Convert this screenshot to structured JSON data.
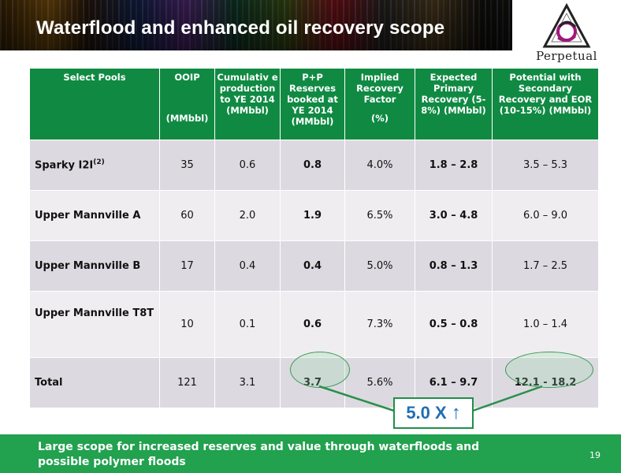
{
  "slide": {
    "title": "Waterflood and enhanced oil recovery scope",
    "logo_text": "Perpetual",
    "page_number": "19",
    "footer_text": "Large scope for increased reserves and value through waterfloods and possible polymer floods",
    "callout_text": "5.0 X"
  },
  "colors": {
    "header_green": "#108a43",
    "footer_green": "#22a14f",
    "callout_blue": "#1f6fb3"
  },
  "table": {
    "headers": [
      {
        "top": "Select Pools",
        "bottom": ""
      },
      {
        "top": "OOIP",
        "bottom": "(MMbbl)"
      },
      {
        "top": "Cumulativ e production to YE 2014 (MMbbl)",
        "bottom": ""
      },
      {
        "top": "P+P Reserves booked at YE 2014 (MMbbl)",
        "bottom": ""
      },
      {
        "top": "Implied Recovery Factor",
        "bottom": "(%)"
      },
      {
        "top": "Expected Primary Recovery (5-8%) (MMbbl)",
        "bottom": ""
      },
      {
        "top": "Potential with Secondary Recovery and EOR (10-15%) (MMbbl)",
        "bottom": ""
      }
    ],
    "rows": [
      {
        "pool": "Sparky I2I",
        "sup": "(2)",
        "ooip": "35",
        "cum": "0.6",
        "pp": "0.8",
        "rf": "4.0%",
        "primary": "1.8 – 2.8",
        "potential": "3.5 – 5.3"
      },
      {
        "pool": "Upper Mannville A",
        "sup": "",
        "ooip": "60",
        "cum": "2.0",
        "pp": "1.9",
        "rf": "6.5%",
        "primary": "3.0 – 4.8",
        "potential": "6.0 – 9.0"
      },
      {
        "pool": "Upper Mannville B",
        "sup": "",
        "ooip": "17",
        "cum": "0.4",
        "pp": "0.4",
        "rf": "5.0%",
        "primary": "0.8 – 1.3",
        "potential": "1.7 – 2.5"
      },
      {
        "pool": "Upper Mannville T8T",
        "sup": "",
        "ooip": "10",
        "cum": "0.1",
        "pp": "0.6",
        "rf": "7.3%",
        "primary": "0.5 – 0.8",
        "potential": "1.0 – 1.4"
      },
      {
        "pool": "Total",
        "sup": "",
        "ooip": "121",
        "cum": "3.1",
        "pp": "3.7",
        "rf": "5.6%",
        "primary": "6.1 – 9.7",
        "potential": "12.1 - 18.2"
      }
    ]
  }
}
